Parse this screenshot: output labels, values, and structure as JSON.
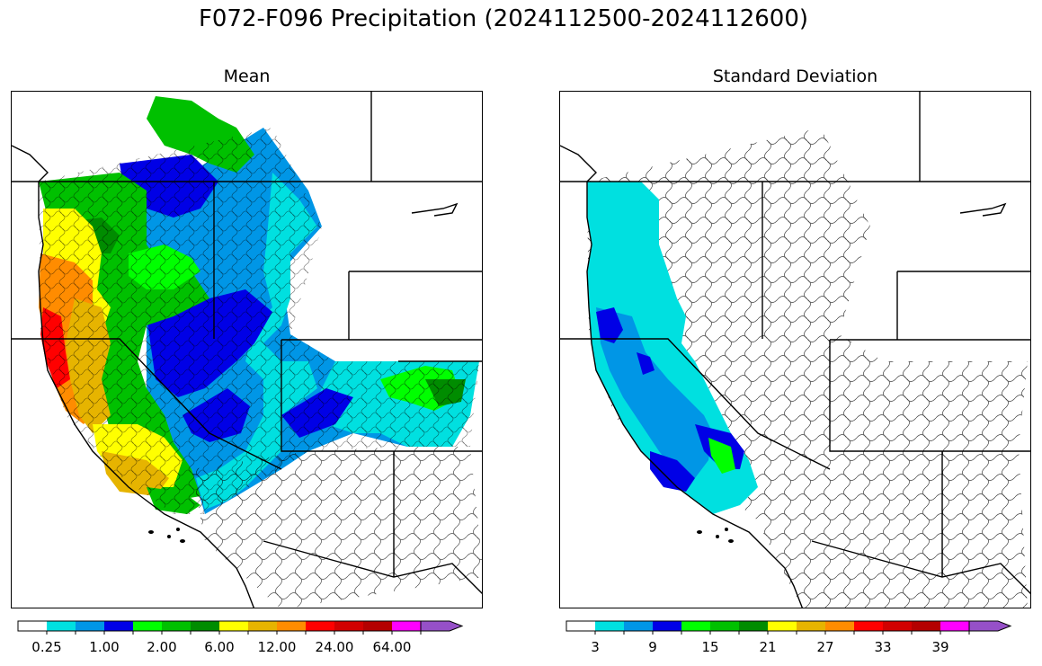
{
  "title": "F072-F096 Precipitation (2024112500-2024112600)",
  "panels": [
    {
      "id": "mean",
      "title": "Mean",
      "colorbar": {
        "colors": [
          "#ffffff",
          "#00e0e0",
          "#0096e6",
          "#0000e6",
          "#00ff00",
          "#00c000",
          "#008c00",
          "#ffff00",
          "#e6b400",
          "#ff8c00",
          "#ff0000",
          "#d20000",
          "#b40000",
          "#ff00ff",
          "#9650c8"
        ],
        "extend": "max",
        "tick_labels": [
          "0.25",
          "1.00",
          "2.00",
          "6.00",
          "12.00",
          "24.00",
          "64.00"
        ]
      }
    },
    {
      "id": "stddev",
      "title": "Standard Deviation",
      "colorbar": {
        "colors": [
          "#ffffff",
          "#00e0e0",
          "#0096e6",
          "#0000e6",
          "#00ff00",
          "#00c000",
          "#008c00",
          "#ffff00",
          "#e6b400",
          "#ff8c00",
          "#ff0000",
          "#d20000",
          "#b40000",
          "#ff00ff",
          "#9650c8"
        ],
        "extend": "max",
        "tick_labels": [
          "3",
          "9",
          "15",
          "21",
          "27",
          "33",
          "39"
        ]
      }
    }
  ]
}
